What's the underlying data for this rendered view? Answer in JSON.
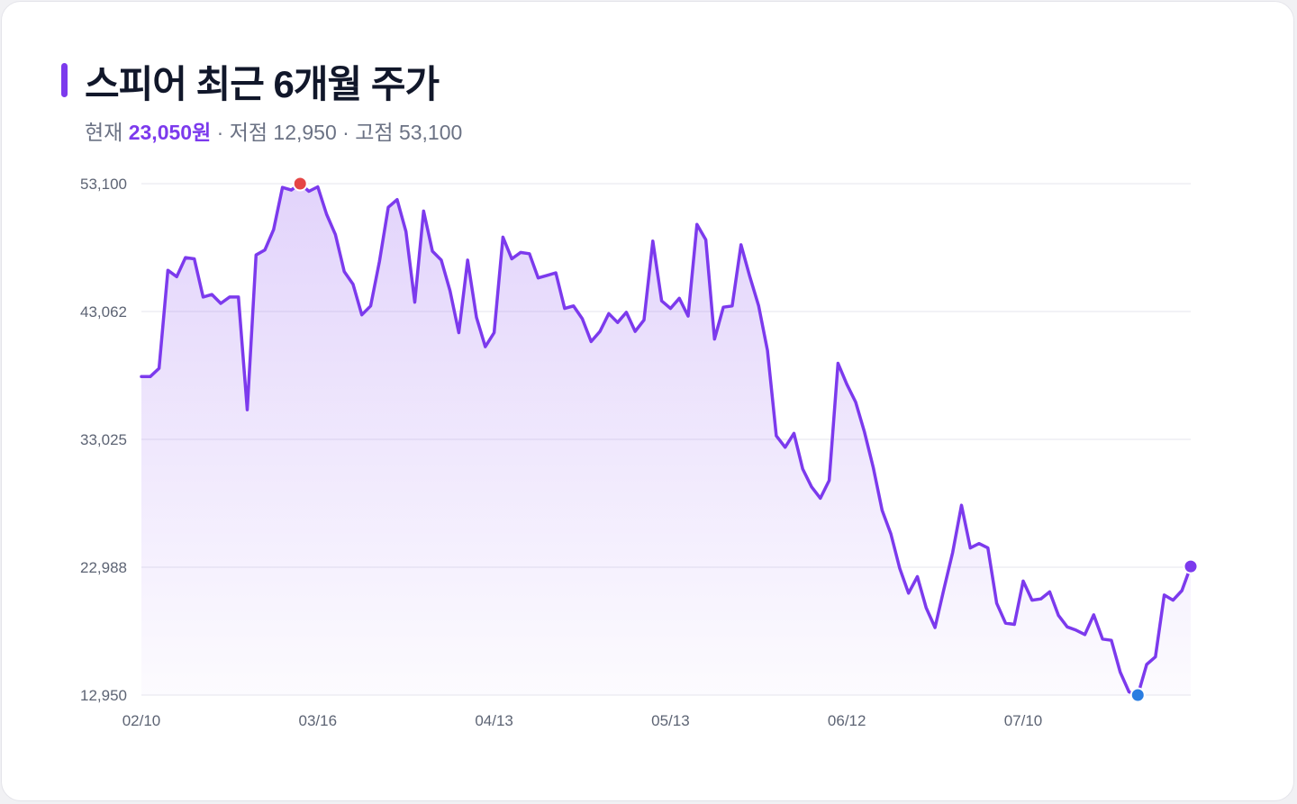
{
  "title": "스피어 최근 6개월 주가",
  "summary": {
    "current_label": "현재",
    "current_value": "23,050원",
    "sep1": "·",
    "low_label": "저점",
    "low_value": "12,950",
    "sep2": "·",
    "high_label": "고점",
    "high_value": "53,100"
  },
  "colors": {
    "line": "#7c3aed",
    "high_marker": "#e54646",
    "low_marker": "#2a7de1",
    "last_marker": "#7c3aed"
  },
  "chart_data": {
    "type": "area",
    "title": "스피어 최근 6개월 주가",
    "xlabel": "",
    "ylabel": "",
    "grid": true,
    "legend": "none",
    "ylim": [
      12950,
      53100
    ],
    "yticks": [
      12950,
      22988,
      33025,
      43062,
      53100
    ],
    "ytick_labels": [
      "12,950",
      "22,988",
      "33,025",
      "43,062",
      "53,100"
    ],
    "xtick_labels": [
      "02/10",
      "03/16",
      "04/13",
      "05/13",
      "06/12",
      "07/10"
    ],
    "xtick_index": [
      0,
      20,
      40,
      60,
      80,
      100
    ],
    "high": {
      "index": 18,
      "value": 53100
    },
    "low": {
      "index": 113,
      "value": 12950
    },
    "last": {
      "index": 119,
      "value": 23050
    },
    "values": [
      37950,
      37950,
      38600,
      46300,
      45800,
      47300,
      47200,
      44200,
      44400,
      43700,
      44200,
      44200,
      35350,
      47500,
      47900,
      49500,
      52800,
      52600,
      53100,
      52500,
      52850,
      50700,
      49100,
      46200,
      45200,
      42800,
      43500,
      47000,
      51250,
      51850,
      49350,
      43800,
      50950,
      47800,
      47100,
      44700,
      41400,
      47100,
      42600,
      40300,
      41400,
      48900,
      47200,
      47700,
      47600,
      45700,
      45900,
      46100,
      43300,
      43500,
      42500,
      40700,
      41500,
      42900,
      42200,
      43000,
      41500,
      42400,
      48600,
      43900,
      43300,
      44100,
      42700,
      49900,
      48700,
      40900,
      43400,
      43500,
      48300,
      45800,
      43500,
      40000,
      33300,
      32400,
      33500,
      30700,
      29300,
      28400,
      29800,
      39000,
      37350,
      35950,
      33600,
      30800,
      27450,
      25600,
      22900,
      20950,
      22250,
      19800,
      18250,
      21250,
      24150,
      27850,
      24500,
      24850,
      24500,
      20150,
      18600,
      18500,
      21900,
      20400,
      20500,
      21050,
      19200,
      18300,
      18050,
      17700,
      19250,
      17350,
      17250,
      14750,
      13200,
      12950,
      15350,
      15950,
      20800,
      20400,
      21150,
      23050
    ]
  }
}
